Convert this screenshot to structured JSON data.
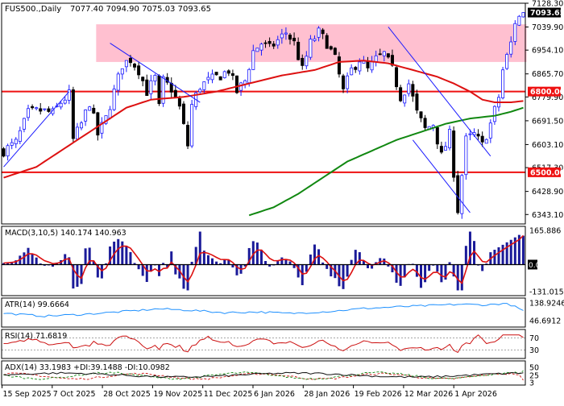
{
  "header": {
    "symbol": "FUS500.,Daily",
    "ohlc": "7077.40 7094.90 7075.03 7093.65"
  },
  "colors": {
    "bull": "#1a1aff",
    "bear": "#000000",
    "ma_fast": "#dd1111",
    "ma_slow": "#118811",
    "zone_fill": "#ffc0d0",
    "level_line": "#ee1111",
    "trend_line": "#1a1aff",
    "macd_hist": "#1a1a99",
    "macd_signal": "#dd1111",
    "atr_line": "#1e90ff",
    "rsi_line": "#cc1111",
    "adx_line": "#111111",
    "pdi_line": "#118811",
    "mdi_line": "#cc1111"
  },
  "chart_data": {
    "type": "candlestick",
    "x_tick_labels": [
      "15 Sep 2025",
      "7 Oct 2025",
      "28 Oct 2025",
      "19 Nov 2025",
      "11 Dec 2025",
      "6 Jan 2026",
      "28 Jan 2026",
      "19 Feb 2026",
      "12 Mar 2026",
      "1 Apr 2026"
    ],
    "price_axis": {
      "ylim": [
        6320,
        7128.3
      ],
      "ticks": [
        "7128.30",
        "7039.90",
        "6954.10",
        "6865.70",
        "6779.90",
        "6691.50",
        "6603.10",
        "6517.30",
        "6428.90",
        "6343.10"
      ]
    },
    "current_price": "7093.65",
    "levels": [
      {
        "label": "6800.00",
        "value": 6800
      },
      {
        "label": "6500.00",
        "value": 6500
      }
    ],
    "resistance_zone": [
      6910,
      7050
    ],
    "close_path": [
      [
        0,
        6580
      ],
      [
        3,
        6610
      ],
      [
        6,
        6720
      ],
      [
        9,
        6730
      ],
      [
        12,
        6720
      ],
      [
        14,
        6760
      ],
      [
        16,
        6790
      ],
      [
        17,
        6620
      ],
      [
        19,
        6680
      ],
      [
        21,
        6760
      ],
      [
        23,
        6640
      ],
      [
        25,
        6700
      ],
      [
        27,
        6800
      ],
      [
        29,
        6900
      ],
      [
        31,
        6920
      ],
      [
        33,
        6880
      ],
      [
        35,
        6800
      ],
      [
        37,
        6850
      ],
      [
        38,
        6740
      ],
      [
        39,
        6840
      ],
      [
        41,
        6810
      ],
      [
        43,
        6740
      ],
      [
        45,
        6600
      ],
      [
        46,
        6750
      ],
      [
        48,
        6820
      ],
      [
        50,
        6840
      ],
      [
        53,
        6860
      ],
      [
        55,
        6880
      ],
      [
        57,
        6800
      ],
      [
        59,
        6840
      ],
      [
        61,
        6950
      ],
      [
        63,
        6980
      ],
      [
        65,
        6960
      ],
      [
        67,
        6990
      ],
      [
        69,
        7020
      ],
      [
        71,
        6980
      ],
      [
        73,
        6880
      ],
      [
        75,
        6980
      ],
      [
        77,
        7020
      ],
      [
        79,
        6980
      ],
      [
        81,
        6920
      ],
      [
        83,
        6800
      ],
      [
        85,
        6880
      ],
      [
        87,
        6920
      ],
      [
        89,
        6880
      ],
      [
        91,
        6920
      ],
      [
        93,
        6940
      ],
      [
        95,
        6880
      ],
      [
        97,
        6780
      ],
      [
        99,
        6830
      ],
      [
        101,
        6720
      ],
      [
        103,
        6660
      ],
      [
        105,
        6680
      ],
      [
        107,
        6560
      ],
      [
        109,
        6640
      ],
      [
        111,
        6360
      ],
      [
        113,
        6620
      ],
      [
        115,
        6640
      ],
      [
        117,
        6600
      ],
      [
        119,
        6680
      ],
      [
        121,
        6780
      ],
      [
        122,
        6880
      ],
      [
        124,
        6980
      ],
      [
        125,
        7060
      ],
      [
        127,
        7093.65
      ]
    ],
    "ma_fast_path": [
      [
        0,
        6480
      ],
      [
        8,
        6520
      ],
      [
        16,
        6600
      ],
      [
        24,
        6680
      ],
      [
        30,
        6740
      ],
      [
        36,
        6770
      ],
      [
        44,
        6780
      ],
      [
        52,
        6800
      ],
      [
        60,
        6830
      ],
      [
        68,
        6860
      ],
      [
        76,
        6880
      ],
      [
        82,
        6910
      ],
      [
        88,
        6915
      ],
      [
        94,
        6905
      ],
      [
        100,
        6880
      ],
      [
        106,
        6855
      ],
      [
        110,
        6830
      ],
      [
        114,
        6800
      ],
      [
        117,
        6770
      ],
      [
        120,
        6760
      ],
      [
        124,
        6760
      ],
      [
        127,
        6765
      ]
    ],
    "ma_slow_path": [
      [
        60,
        6340
      ],
      [
        66,
        6370
      ],
      [
        72,
        6420
      ],
      [
        78,
        6480
      ],
      [
        84,
        6540
      ],
      [
        90,
        6580
      ],
      [
        96,
        6620
      ],
      [
        102,
        6650
      ],
      [
        108,
        6680
      ],
      [
        114,
        6700
      ],
      [
        120,
        6710
      ],
      [
        124,
        6725
      ],
      [
        127,
        6740
      ]
    ],
    "trend_lines": [
      [
        [
          0,
          6520
        ],
        [
          16,
          6800
        ]
      ],
      [
        [
          26,
          6980
        ],
        [
          48,
          6760
        ]
      ],
      [
        [
          94,
          7040
        ],
        [
          119,
          6560
        ]
      ],
      [
        [
          100,
          6620
        ],
        [
          114,
          6350
        ]
      ]
    ],
    "indicators": {
      "macd": {
        "label": "MACD(3,10,5) 140.174 140.963",
        "ticks": [
          "165.886",
          "0.00",
          "-131.015"
        ],
        "ylim": [
          -131.015,
          165.886
        ],
        "last": [
          140.174,
          140.963
        ]
      },
      "atr": {
        "label": "ATR(14) 99.6664",
        "ticks": [
          "138.9246",
          "46.6912"
        ],
        "ylim": [
          46.6912,
          138.9246
        ],
        "last": 99.6664
      },
      "rsi": {
        "label": "RSI(14) 71.6819",
        "ticks": [
          "70",
          "30"
        ],
        "ylim": [
          10,
          90
        ],
        "last": 71.6819
      },
      "adx": {
        "label": "ADX(14) 33.1983 +DI:39.1488 -DI:10.0982",
        "ticks": [
          "50",
          "25",
          "3"
        ],
        "ylim": [
          0,
          60
        ],
        "last": [
          33.1983,
          39.1488,
          10.0982
        ]
      }
    }
  }
}
